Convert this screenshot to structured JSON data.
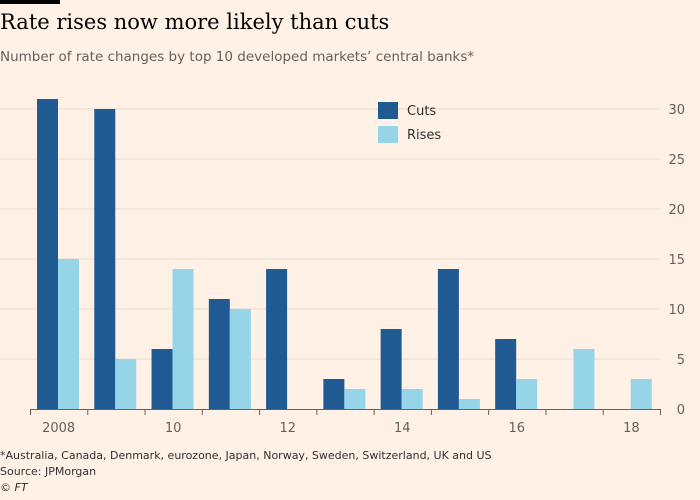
{
  "header": {
    "title": "Rate rises now more likely than cuts",
    "subtitle": "Number of rate changes by top 10 developed markets’ central banks*"
  },
  "footer": {
    "footnote": "*Australia, Canada, Denmark, eurozone, Japan, Norway, Sweden, Switzerland, UK and US",
    "source": "Source: JPMorgan",
    "credit": "© FT"
  },
  "colors": {
    "background": "#FFF1E5",
    "cuts": "#1F5A92",
    "rises": "#96D4E8",
    "grid": "#E6D9CE",
    "axis": "#66605C"
  },
  "chart_data": {
    "type": "bar",
    "categories": [
      "2008",
      "2009",
      "2010",
      "2011",
      "2012",
      "2013",
      "2014",
      "2015",
      "2016",
      "2017",
      "2018"
    ],
    "x_tick_labels": [
      "2008",
      "",
      "10",
      "",
      "12",
      "",
      "14",
      "",
      "16",
      "",
      "18"
    ],
    "series": [
      {
        "name": "Cuts",
        "values": [
          31,
          30,
          6,
          11,
          14,
          3,
          8,
          14,
          7,
          0,
          0
        ]
      },
      {
        "name": "Rises",
        "values": [
          15,
          5,
          14,
          10,
          0,
          2,
          2,
          1,
          3,
          6,
          3
        ]
      }
    ],
    "title": "",
    "xlabel": "",
    "ylabel": "",
    "ylim": [
      0,
      30
    ],
    "yticks": [
      0,
      5,
      10,
      15,
      20,
      25,
      30
    ],
    "grid": true,
    "y_axis_side": "right",
    "legend_position": "top-center"
  }
}
